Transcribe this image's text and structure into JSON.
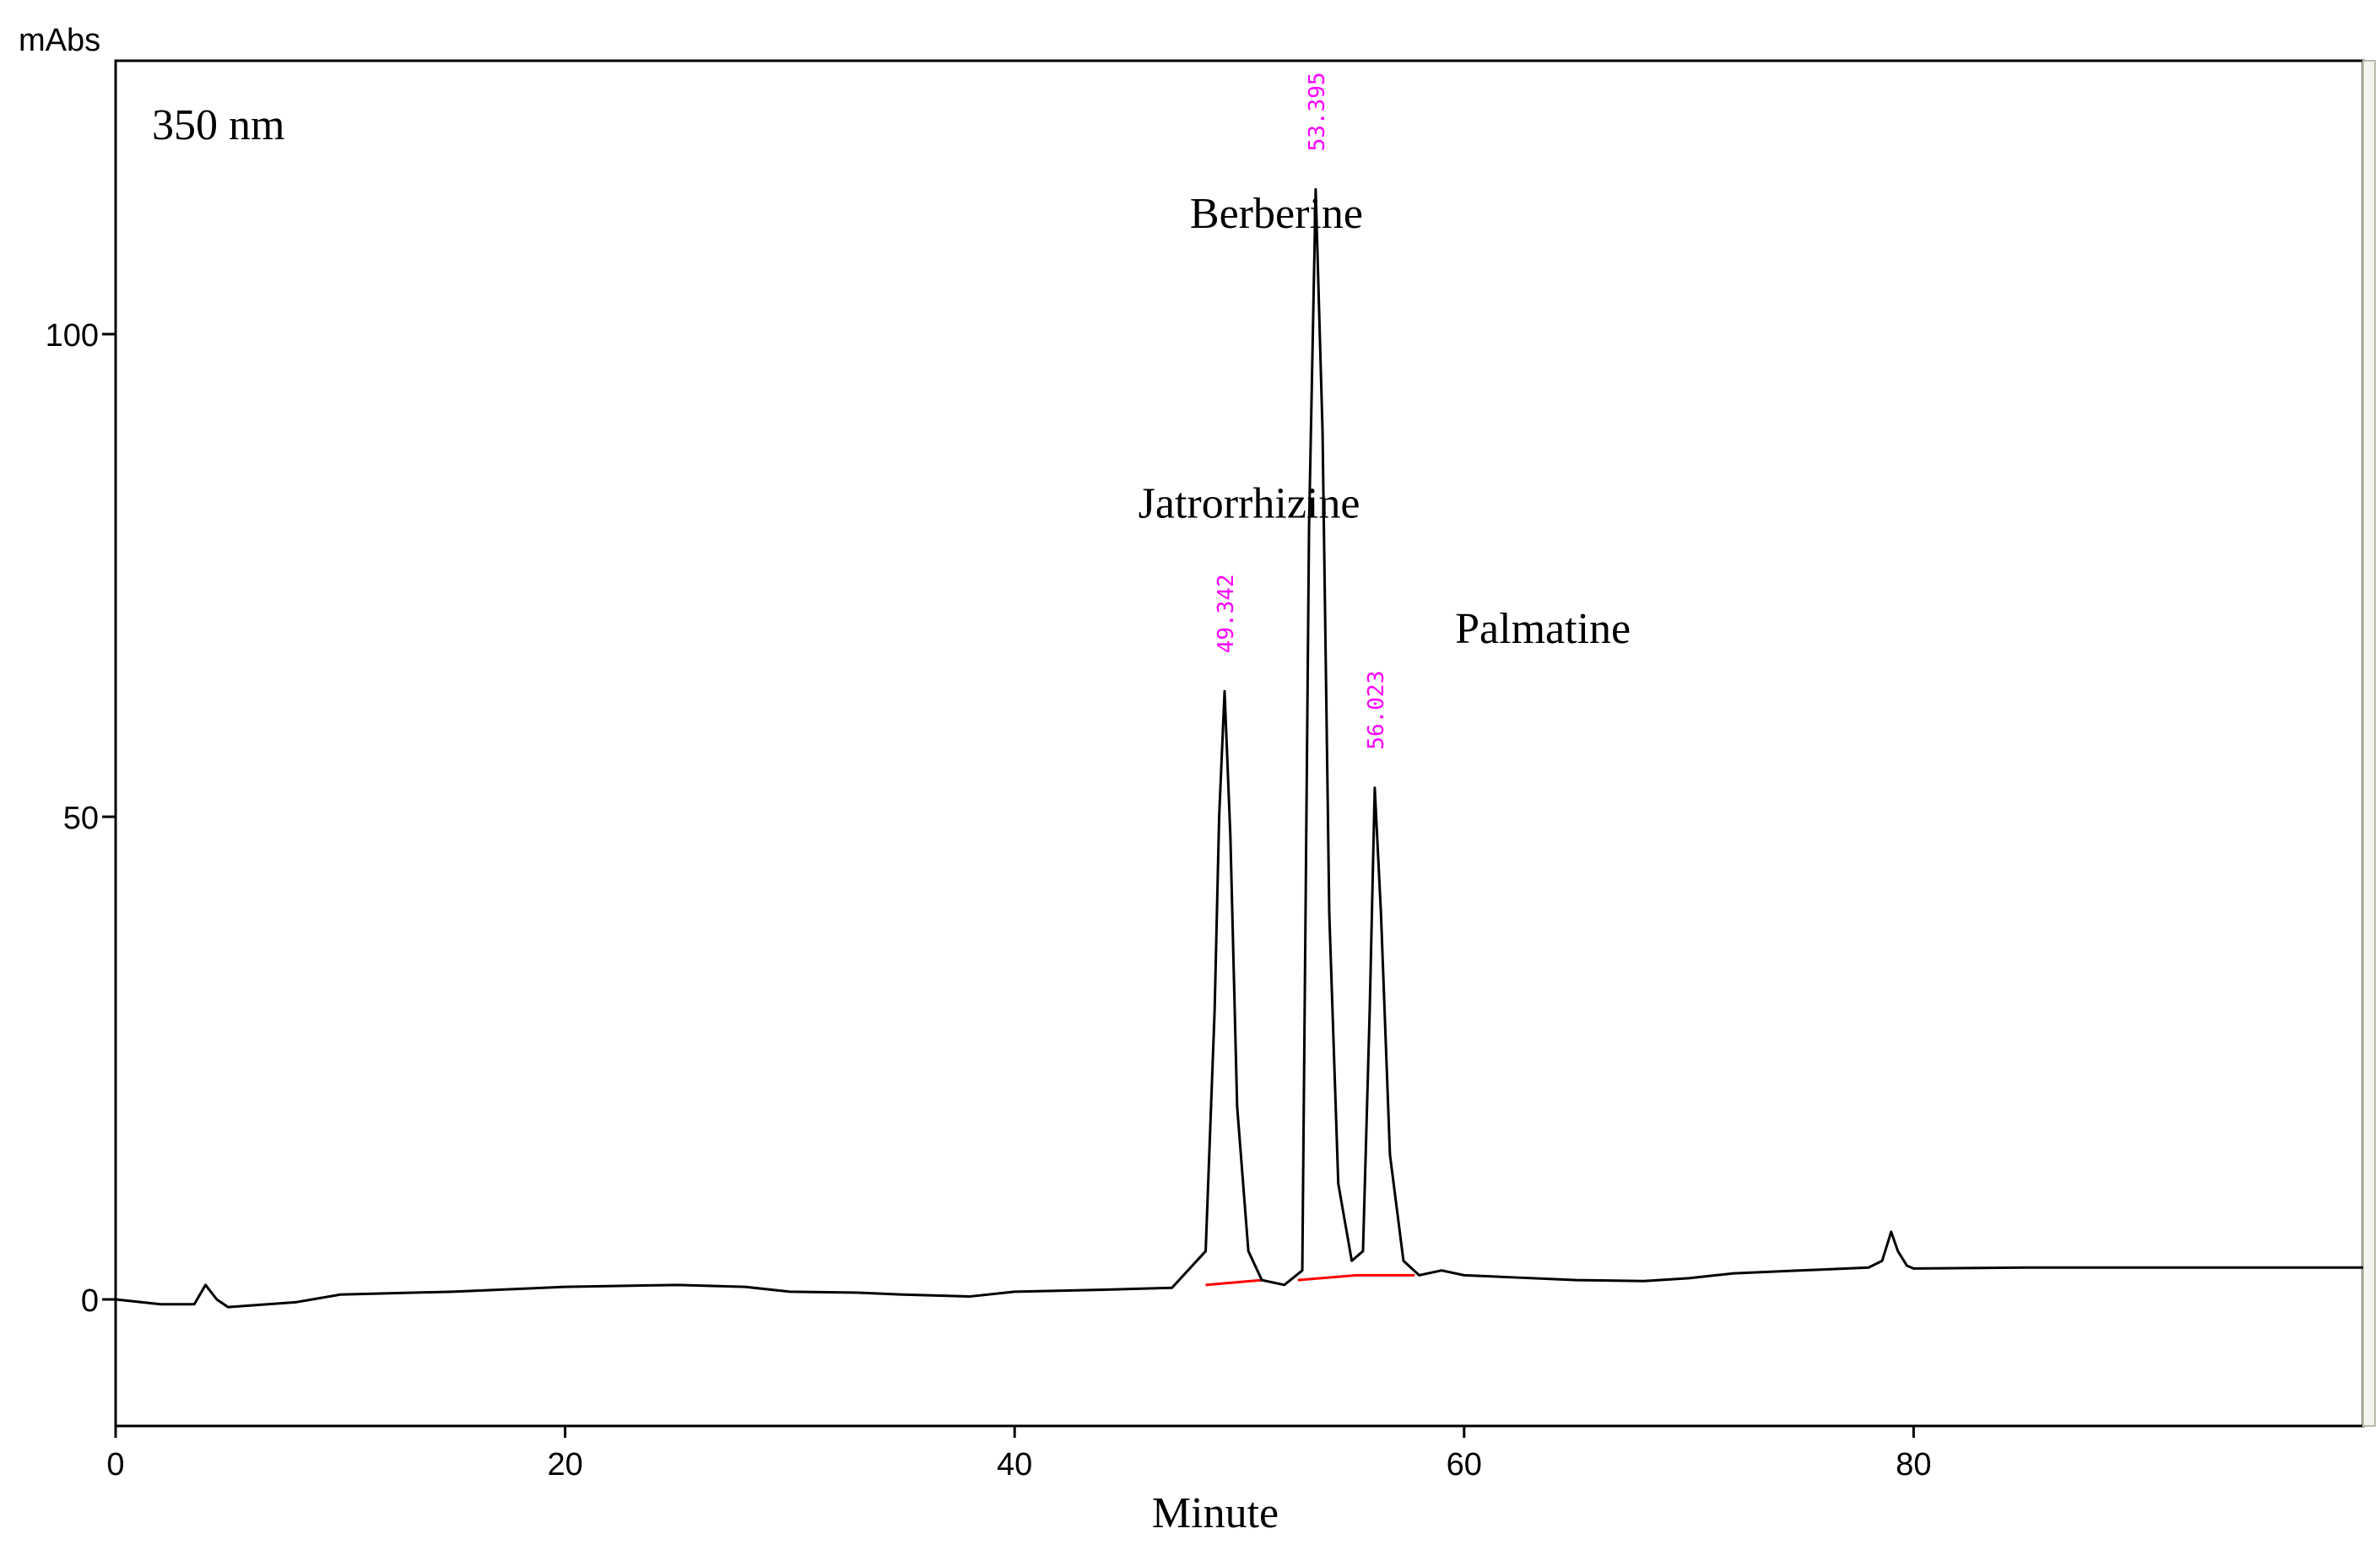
{
  "chart_data": {
    "type": "line",
    "title": "",
    "xlabel": "Minute",
    "ylabel": "mAbs",
    "xlim": [
      0,
      100
    ],
    "ylim": [
      -13,
      128
    ],
    "x_ticks": [
      0,
      20,
      40,
      60,
      80
    ],
    "y_ticks": [
      0,
      50,
      100
    ],
    "x_tick_labels": [
      "0",
      "20",
      "40",
      "60",
      "80"
    ],
    "y_tick_labels": [
      "0",
      "50",
      "100"
    ],
    "wavelength_label": "350 nm",
    "series": [
      {
        "color": "#000000",
        "x": [
          0,
          2,
          3.5,
          4,
          4.5,
          5,
          8,
          10,
          15,
          20,
          25,
          28,
          30,
          33,
          35,
          38,
          40,
          44,
          47,
          48.5,
          48.9,
          49.1,
          49.342,
          49.6,
          49.9,
          50.4,
          51,
          52,
          52.8,
          53.1,
          53.395,
          53.7,
          54,
          54.4,
          55,
          55.5,
          55.8,
          56.023,
          56.3,
          56.7,
          57.3,
          58,
          59,
          60,
          62,
          65,
          68,
          70,
          72,
          75,
          78,
          78.6,
          79,
          79.3,
          79.7,
          80,
          85,
          90,
          95,
          100
        ],
        "y": [
          0,
          -0.5,
          -0.5,
          1.5,
          0,
          -0.8,
          -0.3,
          0.5,
          0.8,
          1.3,
          1.5,
          1.3,
          0.8,
          0.7,
          0.5,
          0.3,
          0.8,
          1,
          1.2,
          5,
          30,
          50,
          63,
          48,
          20,
          5,
          2,
          1.5,
          3,
          80,
          115,
          90,
          40,
          12,
          4,
          5,
          30,
          53,
          40,
          15,
          4,
          2.5,
          3,
          2.5,
          2.3,
          2,
          1.9,
          2.2,
          2.7,
          3,
          3.3,
          4,
          7,
          5,
          3.5,
          3.2,
          3.3,
          3.3,
          3.3,
          3.3
        ]
      }
    ],
    "baselines": [
      {
        "color": "#ff0000",
        "x": [
          48.5,
          51
        ],
        "y": [
          1.5,
          2
        ]
      },
      {
        "color": "#ff0000",
        "x": [
          52.6,
          55.2
        ],
        "y": [
          2,
          2.5
        ]
      },
      {
        "color": "#ff0000",
        "x": [
          55.2,
          57.8
        ],
        "y": [
          2.5,
          2.5
        ]
      }
    ],
    "annotations": [
      {
        "text": "Jatrorrhizine",
        "x": 45.5,
        "y": 81
      },
      {
        "text": "Berberine",
        "x": 47.8,
        "y": 111
      },
      {
        "text": "Palmatine",
        "x": 59.6,
        "y": 68
      }
    ],
    "retention_labels": [
      {
        "text": "49.342",
        "x": 49.342,
        "y": 63
      },
      {
        "text": "53.395",
        "x": 53.395,
        "y": 115
      },
      {
        "text": "56.023",
        "x": 56.023,
        "y": 53
      }
    ]
  }
}
